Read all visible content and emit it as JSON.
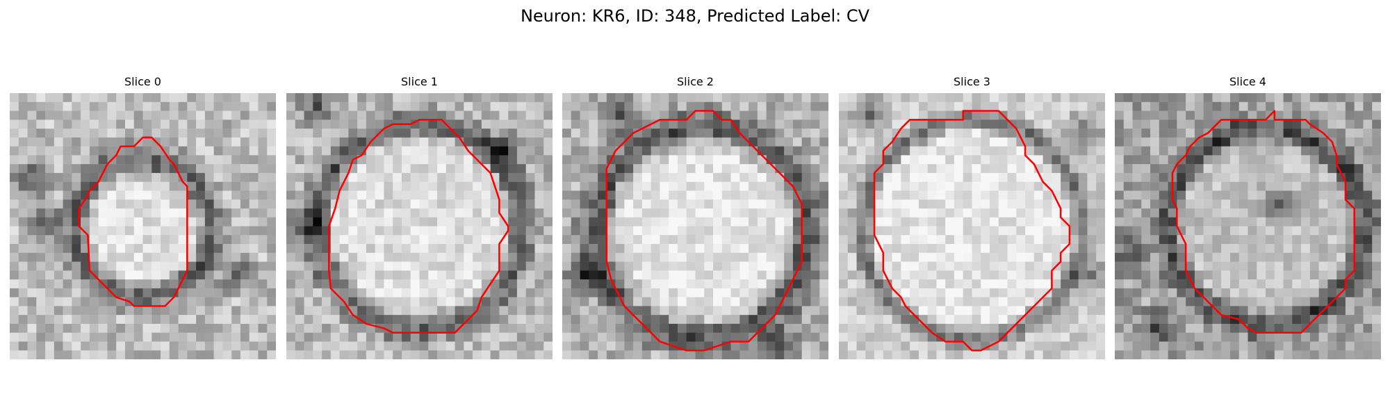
{
  "figure": {
    "title": "Neuron: KR6, ID: 348, Predicted Label: CV"
  },
  "style": {
    "contour_color": "#ff0000",
    "colormap": "grayscale"
  },
  "panels": [
    {
      "title": "Slice 0"
    },
    {
      "title": "Slice 1"
    },
    {
      "title": "Slice 2"
    },
    {
      "title": "Slice 3"
    },
    {
      "title": "Slice 4"
    }
  ]
}
